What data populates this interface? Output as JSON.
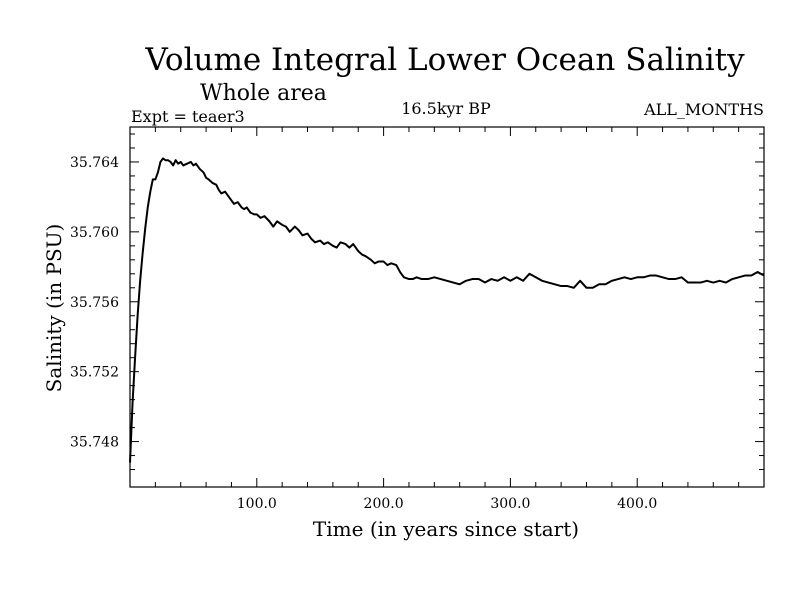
{
  "chart_data": {
    "type": "line",
    "title": "Volume Integral Lower Ocean Salinity",
    "subtitle": "Whole area",
    "experiment": "Expt = teaer3",
    "period": "16.5kyr BP",
    "months": "ALL_MONTHS",
    "xlabel": "Time (in years since start)",
    "ylabel": "Salinity (in PSU)",
    "xlim": [
      0,
      500
    ],
    "ylim": [
      35.7454,
      35.766
    ],
    "x_ticks": [
      100,
      200,
      300,
      400
    ],
    "x_tick_labels": [
      "100.0",
      "200.0",
      "300.0",
      "400.0"
    ],
    "y_ticks": [
      35.748,
      35.752,
      35.756,
      35.76,
      35.764
    ],
    "y_tick_labels": [
      "35.748",
      "35.752",
      "35.756",
      "35.760",
      "35.764"
    ],
    "grid": false,
    "series": [
      {
        "name": "Salinity",
        "x": [
          0,
          2,
          4,
          6,
          8,
          10,
          12,
          14,
          16,
          18,
          20,
          22,
          24,
          26,
          28,
          30,
          32,
          34,
          36,
          38,
          40,
          42,
          45,
          48,
          50,
          52,
          55,
          58,
          60,
          62,
          65,
          68,
          70,
          72,
          75,
          78,
          80,
          82,
          85,
          88,
          90,
          92,
          95,
          98,
          100,
          103,
          106,
          110,
          113,
          116,
          120,
          123,
          126,
          130,
          133,
          136,
          140,
          143,
          146,
          150,
          153,
          156,
          160,
          163,
          166,
          170,
          173,
          176,
          180,
          183,
          186,
          190,
          193,
          196,
          200,
          203,
          206,
          210,
          213,
          216,
          220,
          223,
          226,
          230,
          235,
          240,
          245,
          250,
          255,
          260,
          265,
          270,
          275,
          280,
          285,
          290,
          295,
          300,
          305,
          310,
          315,
          320,
          325,
          330,
          335,
          340,
          345,
          350,
          355,
          360,
          365,
          370,
          375,
          380,
          385,
          390,
          395,
          400,
          405,
          410,
          415,
          420,
          425,
          430,
          435,
          440,
          445,
          450,
          455,
          460,
          465,
          470,
          475,
          480,
          485,
          490,
          495,
          500
        ],
        "values": [
          35.7468,
          35.7502,
          35.7528,
          35.7552,
          35.7572,
          35.7588,
          35.7602,
          35.7614,
          35.7623,
          35.763,
          35.763,
          35.7634,
          35.764,
          35.7642,
          35.7641,
          35.7641,
          35.764,
          35.7638,
          35.7641,
          35.7639,
          35.764,
          35.7638,
          35.7639,
          35.764,
          35.7638,
          35.7639,
          35.7636,
          35.7634,
          35.7631,
          35.763,
          35.7628,
          35.7627,
          35.7624,
          35.7622,
          35.7623,
          35.762,
          35.7618,
          35.7616,
          35.7617,
          35.7614,
          35.7613,
          35.7614,
          35.7611,
          35.761,
          35.761,
          35.7608,
          35.7609,
          35.7606,
          35.7603,
          35.7606,
          35.7604,
          35.7603,
          35.76,
          35.7603,
          35.7601,
          35.7598,
          35.7599,
          35.7596,
          35.7594,
          35.7595,
          35.7593,
          35.7594,
          35.7592,
          35.7591,
          35.7594,
          35.7593,
          35.7591,
          35.7593,
          35.7589,
          35.7587,
          35.7586,
          35.7584,
          35.7582,
          35.7583,
          35.7583,
          35.7581,
          35.7582,
          35.7581,
          35.7577,
          35.7574,
          35.7573,
          35.7573,
          35.7574,
          35.7573,
          35.7573,
          35.7574,
          35.7573,
          35.7572,
          35.7571,
          35.757,
          35.7572,
          35.7573,
          35.7573,
          35.7571,
          35.7573,
          35.7572,
          35.7574,
          35.7572,
          35.7574,
          35.7572,
          35.7576,
          35.7574,
          35.7572,
          35.7571,
          35.757,
          35.7569,
          35.7569,
          35.7568,
          35.7572,
          35.7568,
          35.7568,
          35.757,
          35.757,
          35.7572,
          35.7573,
          35.7574,
          35.7573,
          35.7574,
          35.7574,
          35.7575,
          35.7575,
          35.7574,
          35.7573,
          35.7573,
          35.7574,
          35.7571,
          35.7571,
          35.7571,
          35.7572,
          35.7571,
          35.7572,
          35.7571,
          35.7573,
          35.7574,
          35.7575,
          35.7575,
          35.7577,
          35.7575
        ]
      }
    ]
  }
}
